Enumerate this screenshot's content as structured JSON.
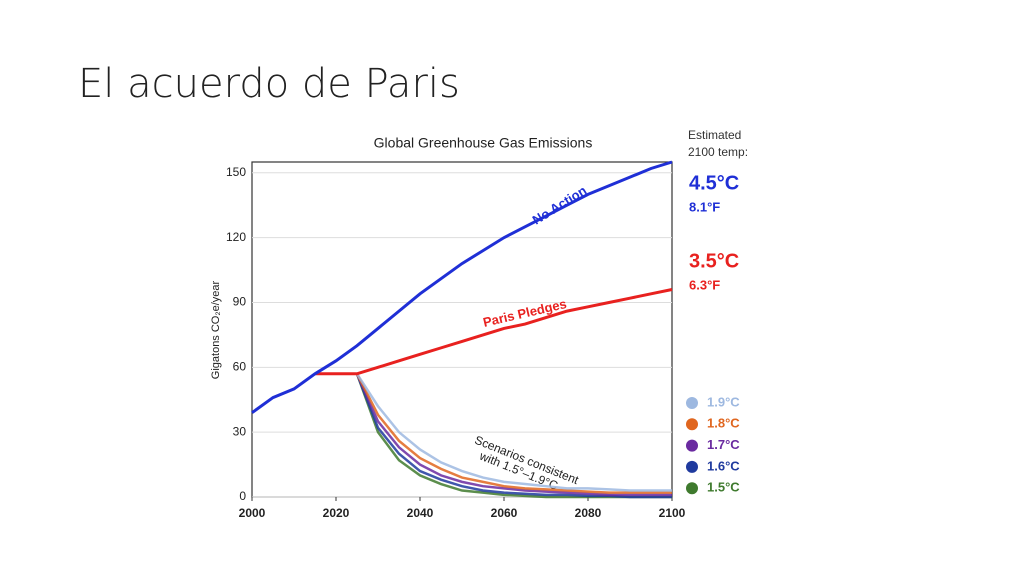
{
  "slide_title": "El acuerdo de Paris",
  "chart_data": {
    "type": "line",
    "title": "Global Greenhouse Gas Emissions",
    "y_label": "Gigatons CO₂e/year",
    "x": [
      2000,
      2005,
      2010,
      2015,
      2020,
      2025,
      2030,
      2035,
      2040,
      2045,
      2050,
      2055,
      2060,
      2065,
      2070,
      2075,
      2080,
      2085,
      2090,
      2095,
      2100
    ],
    "xlim": [
      2000,
      2100
    ],
    "xticks": [
      2000,
      2020,
      2040,
      2060,
      2080,
      2100
    ],
    "ylim": [
      0,
      155
    ],
    "yticks": [
      0,
      30,
      60,
      90,
      120,
      150
    ],
    "grid": true,
    "series": [
      {
        "name": "No Action",
        "color": "#1f2fd6",
        "values": [
          39,
          46,
          50,
          57,
          63,
          70,
          78,
          86,
          94,
          101,
          108,
          114,
          120,
          125,
          130,
          135,
          140,
          144,
          148,
          152,
          155
        ]
      },
      {
        "name": "Paris Pledges",
        "color": "#e8211f",
        "values": [
          null,
          null,
          null,
          57,
          57,
          57,
          60,
          63,
          66,
          69,
          72,
          75,
          78,
          80,
          83,
          86,
          88,
          90,
          92,
          94,
          96
        ]
      },
      {
        "name": "1.9°C",
        "color": "#9db8e0",
        "values": [
          null,
          null,
          null,
          null,
          null,
          57,
          42,
          30,
          22,
          16,
          12,
          9,
          7,
          6,
          5,
          4,
          4,
          3.5,
          3,
          3,
          3
        ]
      },
      {
        "name": "1.8°C",
        "color": "#e0661f",
        "values": [
          null,
          null,
          null,
          null,
          null,
          57,
          38,
          26,
          18,
          13,
          9,
          7,
          5,
          4,
          3.5,
          3,
          2.5,
          2,
          2,
          2,
          2
        ]
      },
      {
        "name": "1.7°C",
        "color": "#6a2aa0",
        "values": [
          null,
          null,
          null,
          null,
          null,
          57,
          35,
          23,
          15,
          10,
          7,
          5,
          4,
          3,
          2.5,
          2,
          1.5,
          1,
          1,
          1,
          1
        ]
      },
      {
        "name": "1.6°C",
        "color": "#1f3a9e",
        "values": [
          null,
          null,
          null,
          null,
          null,
          57,
          32,
          20,
          12,
          8,
          5,
          3,
          2,
          1.5,
          1,
          1,
          0.5,
          0.5,
          0,
          0,
          0
        ]
      },
      {
        "name": "1.5°C",
        "color": "#3f7a2e",
        "values": [
          null,
          null,
          null,
          null,
          null,
          57,
          30,
          17,
          10,
          6,
          3,
          2,
          1,
          0.5,
          0,
          0,
          0,
          0,
          0,
          0,
          0
        ]
      }
    ],
    "temp_header": [
      "Estimated",
      "2100 temp:"
    ],
    "temps": [
      {
        "c": "4.5°C",
        "f": "8.1°F"
      },
      {
        "c": "3.5°C",
        "f": "6.3°F"
      }
    ],
    "scenario_label": [
      "Scenarios consistent",
      "with 1.5°–1.9°C"
    ]
  }
}
